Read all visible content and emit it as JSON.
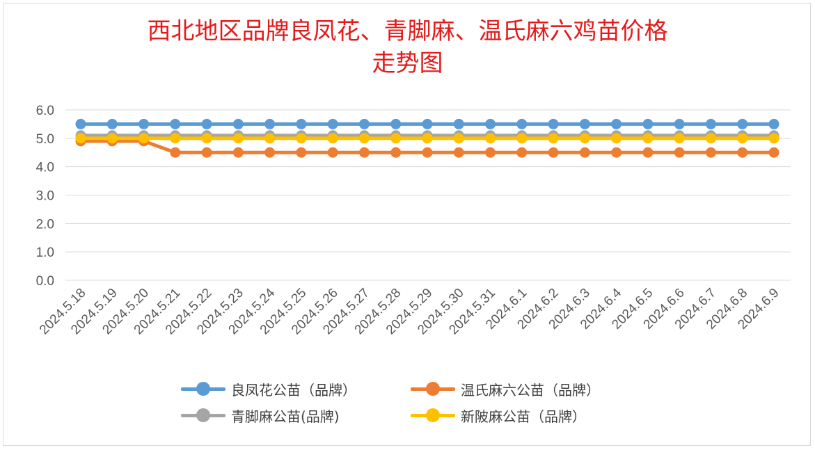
{
  "chart_data": {
    "type": "line",
    "title_line1": "西北地区品牌良凤花、青脚麻、温氏麻六鸡苗价格",
    "title_line2": "走势图",
    "xlabel": "",
    "ylabel": "",
    "ylim": [
      0,
      6
    ],
    "yticks": [
      "0.0",
      "1.0",
      "2.0",
      "3.0",
      "4.0",
      "5.0",
      "6.0"
    ],
    "grid": true,
    "legend_position": "bottom",
    "x": [
      "2024.5.18",
      "2024.5.19",
      "2024.5.20",
      "2024.5.21",
      "2024.5.22",
      "2024.5.23",
      "2024.5.24",
      "2024.5.25",
      "2024.5.26",
      "2024.5.27",
      "2024.5.28",
      "2024.5.29",
      "2024.5.30",
      "2024.5.31",
      "2024.6.1",
      "2024.6.2",
      "2024.6.3",
      "2024.6.4",
      "2024.6.5",
      "2024.6.6",
      "2024.6.7",
      "2024.6.8",
      "2024.6.9"
    ],
    "series": [
      {
        "name": "良凤花公苗（品牌）",
        "color": "#5b9bd5",
        "values": [
          5.5,
          5.5,
          5.5,
          5.5,
          5.5,
          5.5,
          5.5,
          5.5,
          5.5,
          5.5,
          5.5,
          5.5,
          5.5,
          5.5,
          5.5,
          5.5,
          5.5,
          5.5,
          5.5,
          5.5,
          5.5,
          5.5,
          5.5
        ]
      },
      {
        "name": "温氏麻六公苗（品牌）",
        "color": "#ed7d31",
        "values": [
          4.9,
          4.9,
          4.9,
          4.5,
          4.5,
          4.5,
          4.5,
          4.5,
          4.5,
          4.5,
          4.5,
          4.5,
          4.5,
          4.5,
          4.5,
          4.5,
          4.5,
          4.5,
          4.5,
          4.5,
          4.5,
          4.5,
          4.5
        ]
      },
      {
        "name": "青脚麻公苗(品牌)",
        "color": "#a5a5a5",
        "values": [
          5.1,
          5.1,
          5.1,
          5.1,
          5.1,
          5.1,
          5.1,
          5.1,
          5.1,
          5.1,
          5.1,
          5.1,
          5.1,
          5.1,
          5.1,
          5.1,
          5.1,
          5.1,
          5.1,
          5.1,
          5.1,
          5.1,
          5.1
        ]
      },
      {
        "name": "新陂麻公苗（品牌）",
        "color": "#ffc000",
        "values": [
          5.0,
          5.0,
          5.0,
          5.0,
          5.0,
          5.0,
          5.0,
          5.0,
          5.0,
          5.0,
          5.0,
          5.0,
          5.0,
          5.0,
          5.0,
          5.0,
          5.0,
          5.0,
          5.0,
          5.0,
          5.0,
          5.0,
          5.0
        ]
      }
    ]
  }
}
